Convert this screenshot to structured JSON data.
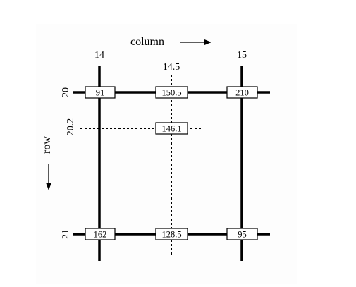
{
  "diagram": {
    "column_axis_label": "column",
    "row_axis_label": "row",
    "columns": [
      {
        "id": "col14",
        "label": "14"
      },
      {
        "id": "col145",
        "label": "14.5",
        "dashed": true
      },
      {
        "id": "col15",
        "label": "15"
      }
    ],
    "rows": [
      {
        "id": "row20",
        "label": "20"
      },
      {
        "id": "row202",
        "label": "20.2",
        "dashed": true
      },
      {
        "id": "row21",
        "label": "21"
      }
    ],
    "values": {
      "r20_c14": "91",
      "r20_c145": "150.5",
      "r20_c15": "210",
      "r202_c145": "146.1",
      "r21_c14": "162",
      "r21_c145": "128.5",
      "r21_c15": "95"
    },
    "colors": {
      "line": "#000000",
      "box_fill": "#ffffff",
      "panel_bg": "#fdfdfd"
    }
  }
}
